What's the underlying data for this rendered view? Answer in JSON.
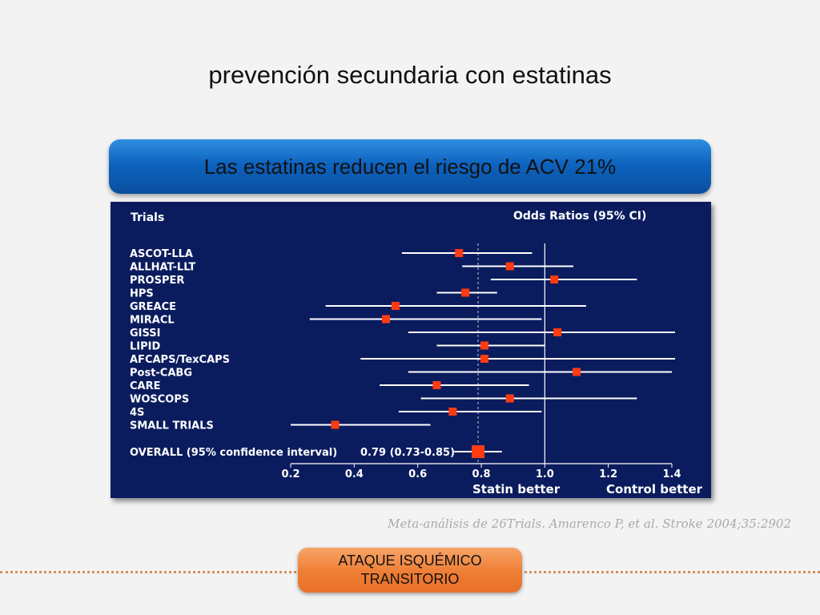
{
  "slide": {
    "title": "prevención secundaria con estatinas",
    "banner": "Las estatinas reducen el riesgo de ACV 21%",
    "citation": "Meta-análisis de 26Trials.  Amarenco  P, et al. Stroke 2004;35:2902",
    "badge_line1": "ATAQUE ISQUÉMICO",
    "badge_line2": "TRANSITORIO"
  },
  "colors": {
    "panel_background": "#0b1c5e",
    "marker": "#ff3b12",
    "banner_blue": "#0d63bf",
    "badge_orange": "#ee7d34"
  },
  "chart_data": {
    "type": "forest",
    "trials_heading": "Trials",
    "or_heading": "Odds Ratios (95% CI)",
    "xlim": [
      0.2,
      1.4
    ],
    "reference_line": 1.0,
    "xticks": [
      "0.2",
      "0.4",
      "0.6",
      "0.8",
      "1.0",
      "1.2",
      "1.4"
    ],
    "left_label": "Statin better",
    "right_label": "Control better",
    "trials": [
      {
        "name": "ASCOT-LLA",
        "or": 0.73,
        "lo": 0.55,
        "hi": 0.96
      },
      {
        "name": "ALLHAT-LLT",
        "or": 0.89,
        "lo": 0.74,
        "hi": 1.09
      },
      {
        "name": "PROSPER",
        "or": 1.03,
        "lo": 0.83,
        "hi": 1.29
      },
      {
        "name": "HPS",
        "or": 0.75,
        "lo": 0.66,
        "hi": 0.85
      },
      {
        "name": "GREACE",
        "or": 0.53,
        "lo": 0.31,
        "hi": 1.13
      },
      {
        "name": "MIRACL",
        "or": 0.5,
        "lo": 0.26,
        "hi": 0.99
      },
      {
        "name": "GISSI",
        "or": 1.04,
        "lo": 0.57,
        "hi": 1.41
      },
      {
        "name": "LIPID",
        "or": 0.81,
        "lo": 0.66,
        "hi": 1.0
      },
      {
        "name": "AFCAPS/TexCAPS",
        "or": 0.81,
        "lo": 0.42,
        "hi": 1.41
      },
      {
        "name": "Post-CABG",
        "or": 1.1,
        "lo": 0.57,
        "hi": 1.4
      },
      {
        "name": "CARE",
        "or": 0.66,
        "lo": 0.48,
        "hi": 0.95
      },
      {
        "name": "WOSCOPS",
        "or": 0.89,
        "lo": 0.61,
        "hi": 1.29
      },
      {
        "name": "4S",
        "or": 0.71,
        "lo": 0.54,
        "hi": 0.99
      },
      {
        "name": "SMALL TRIALS",
        "or": 0.34,
        "lo": 0.2,
        "hi": 0.64
      }
    ],
    "overall": {
      "name": "OVERALL (95% confidence interval)",
      "text": "0.79 (0.73-0.85)",
      "or": 0.79,
      "lo": 0.73,
      "hi": 0.85
    }
  }
}
